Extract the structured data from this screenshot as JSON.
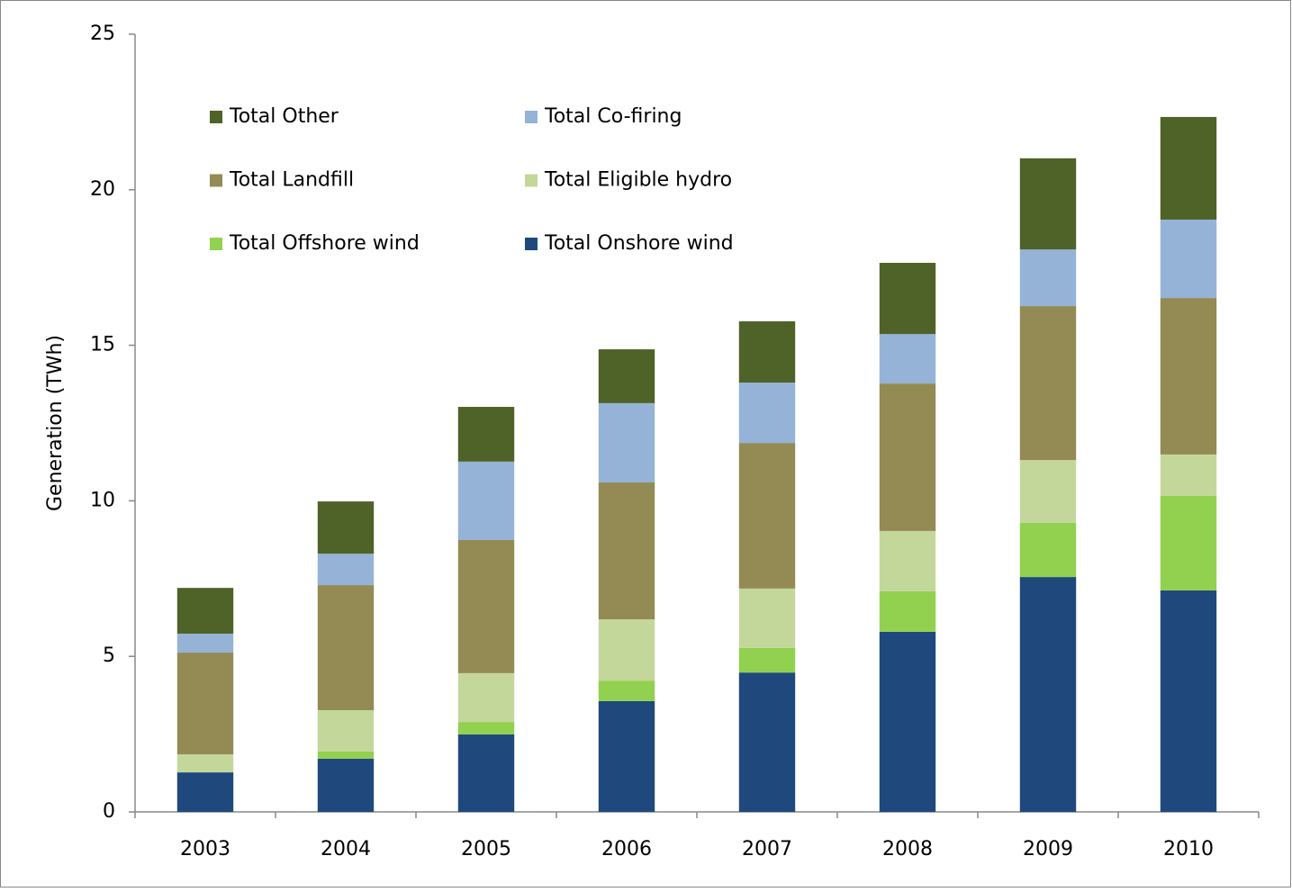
{
  "chart_data": {
    "type": "stacked_bar",
    "y_label": "Generation (TWh)",
    "categories": [
      "2003",
      "2004",
      "2005",
      "2006",
      "2007",
      "2008",
      "2009",
      "2010"
    ],
    "series": [
      {
        "name": "Total Other",
        "color": "#4f6228",
        "values": [
          1.47,
          1.68,
          1.76,
          1.73,
          1.97,
          2.29,
          2.93,
          3.3
        ]
      },
      {
        "name": "Total Co-firing",
        "color": "#95b3d7",
        "values": [
          0.61,
          1.01,
          2.52,
          2.55,
          1.94,
          1.59,
          1.82,
          2.52
        ]
      },
      {
        "name": "Total Landfill",
        "color": "#948a54",
        "values": [
          3.27,
          4.02,
          4.28,
          4.4,
          4.68,
          4.74,
          4.95,
          5.03
        ]
      },
      {
        "name": "Total Eligible hydro",
        "color": "#c4d79b",
        "values": [
          0.58,
          1.33,
          1.57,
          1.97,
          1.91,
          1.94,
          2.02,
          1.33
        ]
      },
      {
        "name": "Total Offshore wind",
        "color": "#92d050",
        "values": [
          0,
          0.23,
          0.4,
          0.66,
          0.79,
          1.3,
          1.74,
          3.04
        ]
      },
      {
        "name": "Total Onshore wind",
        "color": "#1f497d",
        "values": [
          1.27,
          1.71,
          2.49,
          3.56,
          4.48,
          5.79,
          7.55,
          7.12
        ]
      }
    ],
    "ylim": [
      0,
      25
    ],
    "yticks": [
      0,
      5,
      10,
      15,
      20,
      25
    ],
    "grid": false,
    "legend": "top-left"
  }
}
